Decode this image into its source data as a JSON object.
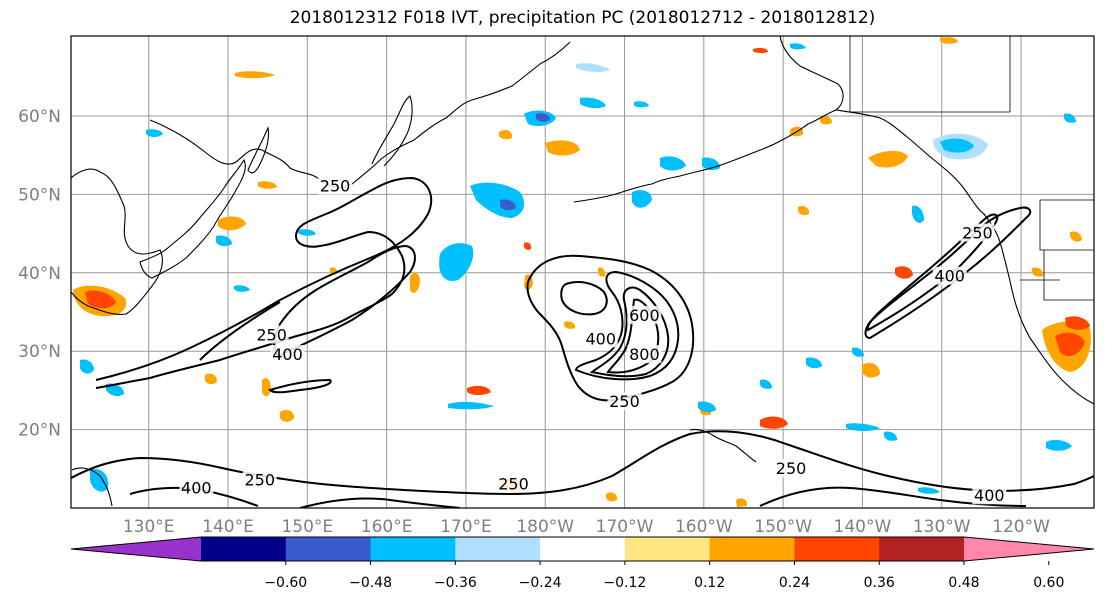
{
  "title": "2018012312 F018 IVT, precipitation PC (2018012712 - 2018012812)",
  "map": {
    "lat_labels": [
      {
        "lat": 60,
        "text": "60°N"
      },
      {
        "lat": 50,
        "text": "50°N"
      },
      {
        "lat": 40,
        "text": "40°N"
      },
      {
        "lat": 30,
        "text": "30°N"
      },
      {
        "lat": 20,
        "text": "20°N"
      }
    ],
    "lon_labels": [
      {
        "lon": 130,
        "text": "130°E"
      },
      {
        "lon": 140,
        "text": "140°E"
      },
      {
        "lon": 150,
        "text": "150°E"
      },
      {
        "lon": 160,
        "text": "160°E"
      },
      {
        "lon": 170,
        "text": "170°E"
      },
      {
        "lon": 180,
        "text": "180°W"
      },
      {
        "lon": 190,
        "text": "170°W"
      },
      {
        "lon": 200,
        "text": "160°W"
      },
      {
        "lon": 210,
        "text": "150°W"
      },
      {
        "lon": 220,
        "text": "140°W"
      },
      {
        "lon": 230,
        "text": "130°W"
      },
      {
        "lon": 240,
        "text": "120°W"
      }
    ],
    "ivt_contour_labels": [
      {
        "text": "250",
        "lon": 153.5,
        "lat": 51
      },
      {
        "text": "250",
        "lon": 145.5,
        "lat": 32
      },
      {
        "text": "400",
        "lon": 147.5,
        "lat": 29.5
      },
      {
        "text": "400",
        "lon": 187,
        "lat": 31.5
      },
      {
        "text": "800",
        "lon": 192.5,
        "lat": 29.5
      },
      {
        "text": "600",
        "lon": 192.5,
        "lat": 34.5
      },
      {
        "text": "250",
        "lon": 190,
        "lat": 23.5
      },
      {
        "text": "250",
        "lon": 234.5,
        "lat": 45
      },
      {
        "text": "400",
        "lon": 231,
        "lat": 39.5
      },
      {
        "text": "250",
        "lon": 211,
        "lat": 15
      },
      {
        "text": "400",
        "lon": 236,
        "lat": 11.5
      },
      {
        "text": "400",
        "lon": 136,
        "lat": 12.5
      },
      {
        "text": "250",
        "lon": 144,
        "lat": 13.5
      },
      {
        "text": "250",
        "lon": 176,
        "lat": 13
      }
    ]
  },
  "colorbar": {
    "tick_labels": [
      "−0.60",
      "−0.48",
      "−0.36",
      "−0.24",
      "−0.12",
      "0.12",
      "0.24",
      "0.36",
      "0.48",
      "0.60"
    ],
    "colors": [
      "#9932CC",
      "#00008B",
      "#3A5BCB",
      "#00BFFF",
      "#B0E0FF",
      "#FFFFFF",
      "#FFE680",
      "#FFA500",
      "#FF4500",
      "#B22222",
      "#FF88AA"
    ]
  }
}
